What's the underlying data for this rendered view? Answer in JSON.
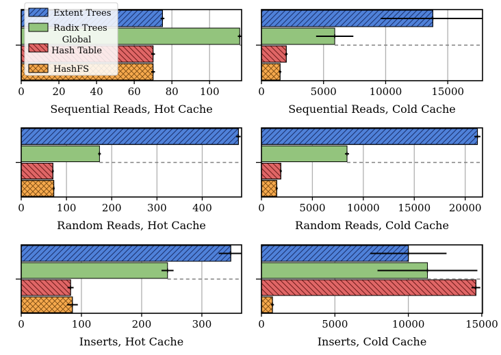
{
  "legend": {
    "placement": "top-left",
    "entries": [
      {
        "label": "Extent Trees",
        "color": "#4f81d9",
        "hatch": "diag-up"
      },
      {
        "label": "Radix Trees",
        "color": "#93c47d",
        "hatch": "none"
      },
      {
        "label_lines": [
          "Global",
          "Hash Table"
        ],
        "color": "#e06666",
        "hatch": "diag-down"
      },
      {
        "label": "HashFS",
        "color": "#f6a94d",
        "hatch": "cross"
      }
    ]
  },
  "chart_data": [
    {
      "type": "bar",
      "orientation": "horizontal",
      "grid": true,
      "xlabel": "Sequential Reads, Hot Cache",
      "xlim": [
        0,
        117
      ],
      "xticks": [
        0,
        20,
        40,
        60,
        80,
        100
      ],
      "series": [
        {
          "name": "Extent Trees",
          "value": 75,
          "err": 1
        },
        {
          "name": "Radix Trees",
          "value": 116,
          "err": 1
        },
        {
          "name": "Global Hash Table",
          "value": 70,
          "err": 1
        },
        {
          "name": "HashFS",
          "value": 70,
          "err": 1
        }
      ],
      "reference_line": 116
    },
    {
      "type": "bar",
      "orientation": "horizontal",
      "grid": true,
      "xlabel": "Sequential Reads, Cold Cache",
      "xlim": [
        0,
        17800
      ],
      "xticks": [
        0,
        5000,
        10000,
        15000
      ],
      "series": [
        {
          "name": "Extent Trees",
          "value": 13800,
          "err": 4200
        },
        {
          "name": "Radix Trees",
          "value": 5900,
          "err": 1500
        },
        {
          "name": "Global Hash Table",
          "value": 2000,
          "err": 100
        },
        {
          "name": "HashFS",
          "value": 1500,
          "err": 100
        }
      ],
      "reference_line": 5900
    },
    {
      "type": "bar",
      "orientation": "horizontal",
      "grid": true,
      "xlabel": "Random Reads, Hot Cache",
      "xlim": [
        0,
        487
      ],
      "xticks": [
        0,
        100,
        200,
        300,
        400
      ],
      "series": [
        {
          "name": "Extent Trees",
          "value": 480,
          "err": 5
        },
        {
          "name": "Radix Trees",
          "value": 173,
          "err": 3
        },
        {
          "name": "Global Hash Table",
          "value": 70,
          "err": 2
        },
        {
          "name": "HashFS",
          "value": 72,
          "err": 2
        }
      ],
      "reference_line": 173
    },
    {
      "type": "bar",
      "orientation": "horizontal",
      "grid": true,
      "xlabel": "Random Reads, Cold Cache",
      "xlim": [
        0,
        21700
      ],
      "xticks": [
        0,
        5000,
        10000,
        15000,
        20000
      ],
      "series": [
        {
          "name": "Extent Trees",
          "value": 21200,
          "err": 300
        },
        {
          "name": "Radix Trees",
          "value": 8400,
          "err": 200
        },
        {
          "name": "Global Hash Table",
          "value": 1900,
          "err": 100
        },
        {
          "name": "HashFS",
          "value": 1500,
          "err": 100
        }
      ],
      "reference_line": 8400
    },
    {
      "type": "bar",
      "orientation": "horizontal",
      "grid": true,
      "xlabel": "Inserts, Hot Cache",
      "xlim": [
        0,
        366
      ],
      "xticks": [
        0,
        100,
        200,
        300
      ],
      "series": [
        {
          "name": "Extent Trees",
          "value": 348,
          "err": 20
        },
        {
          "name": "Radix Trees",
          "value": 243,
          "err": 10
        },
        {
          "name": "Global Hash Table",
          "value": 82,
          "err": 5
        },
        {
          "name": "HashFS",
          "value": 85,
          "err": 9
        }
      ],
      "reference_line": 243
    },
    {
      "type": "bar",
      "orientation": "horizontal",
      "grid": true,
      "xlabel": "Inserts, Cold Cache",
      "xlim": [
        0,
        15050
      ],
      "xticks": [
        0,
        5000,
        10000,
        15000
      ],
      "series": [
        {
          "name": "Extent Trees",
          "value": 10000,
          "err": 2600
        },
        {
          "name": "Radix Trees",
          "value": 11300,
          "err": 3400
        },
        {
          "name": "Global Hash Table",
          "value": 14600,
          "err": 300
        },
        {
          "name": "HashFS",
          "value": 750,
          "err": 100
        }
      ],
      "reference_line": 11300
    }
  ]
}
